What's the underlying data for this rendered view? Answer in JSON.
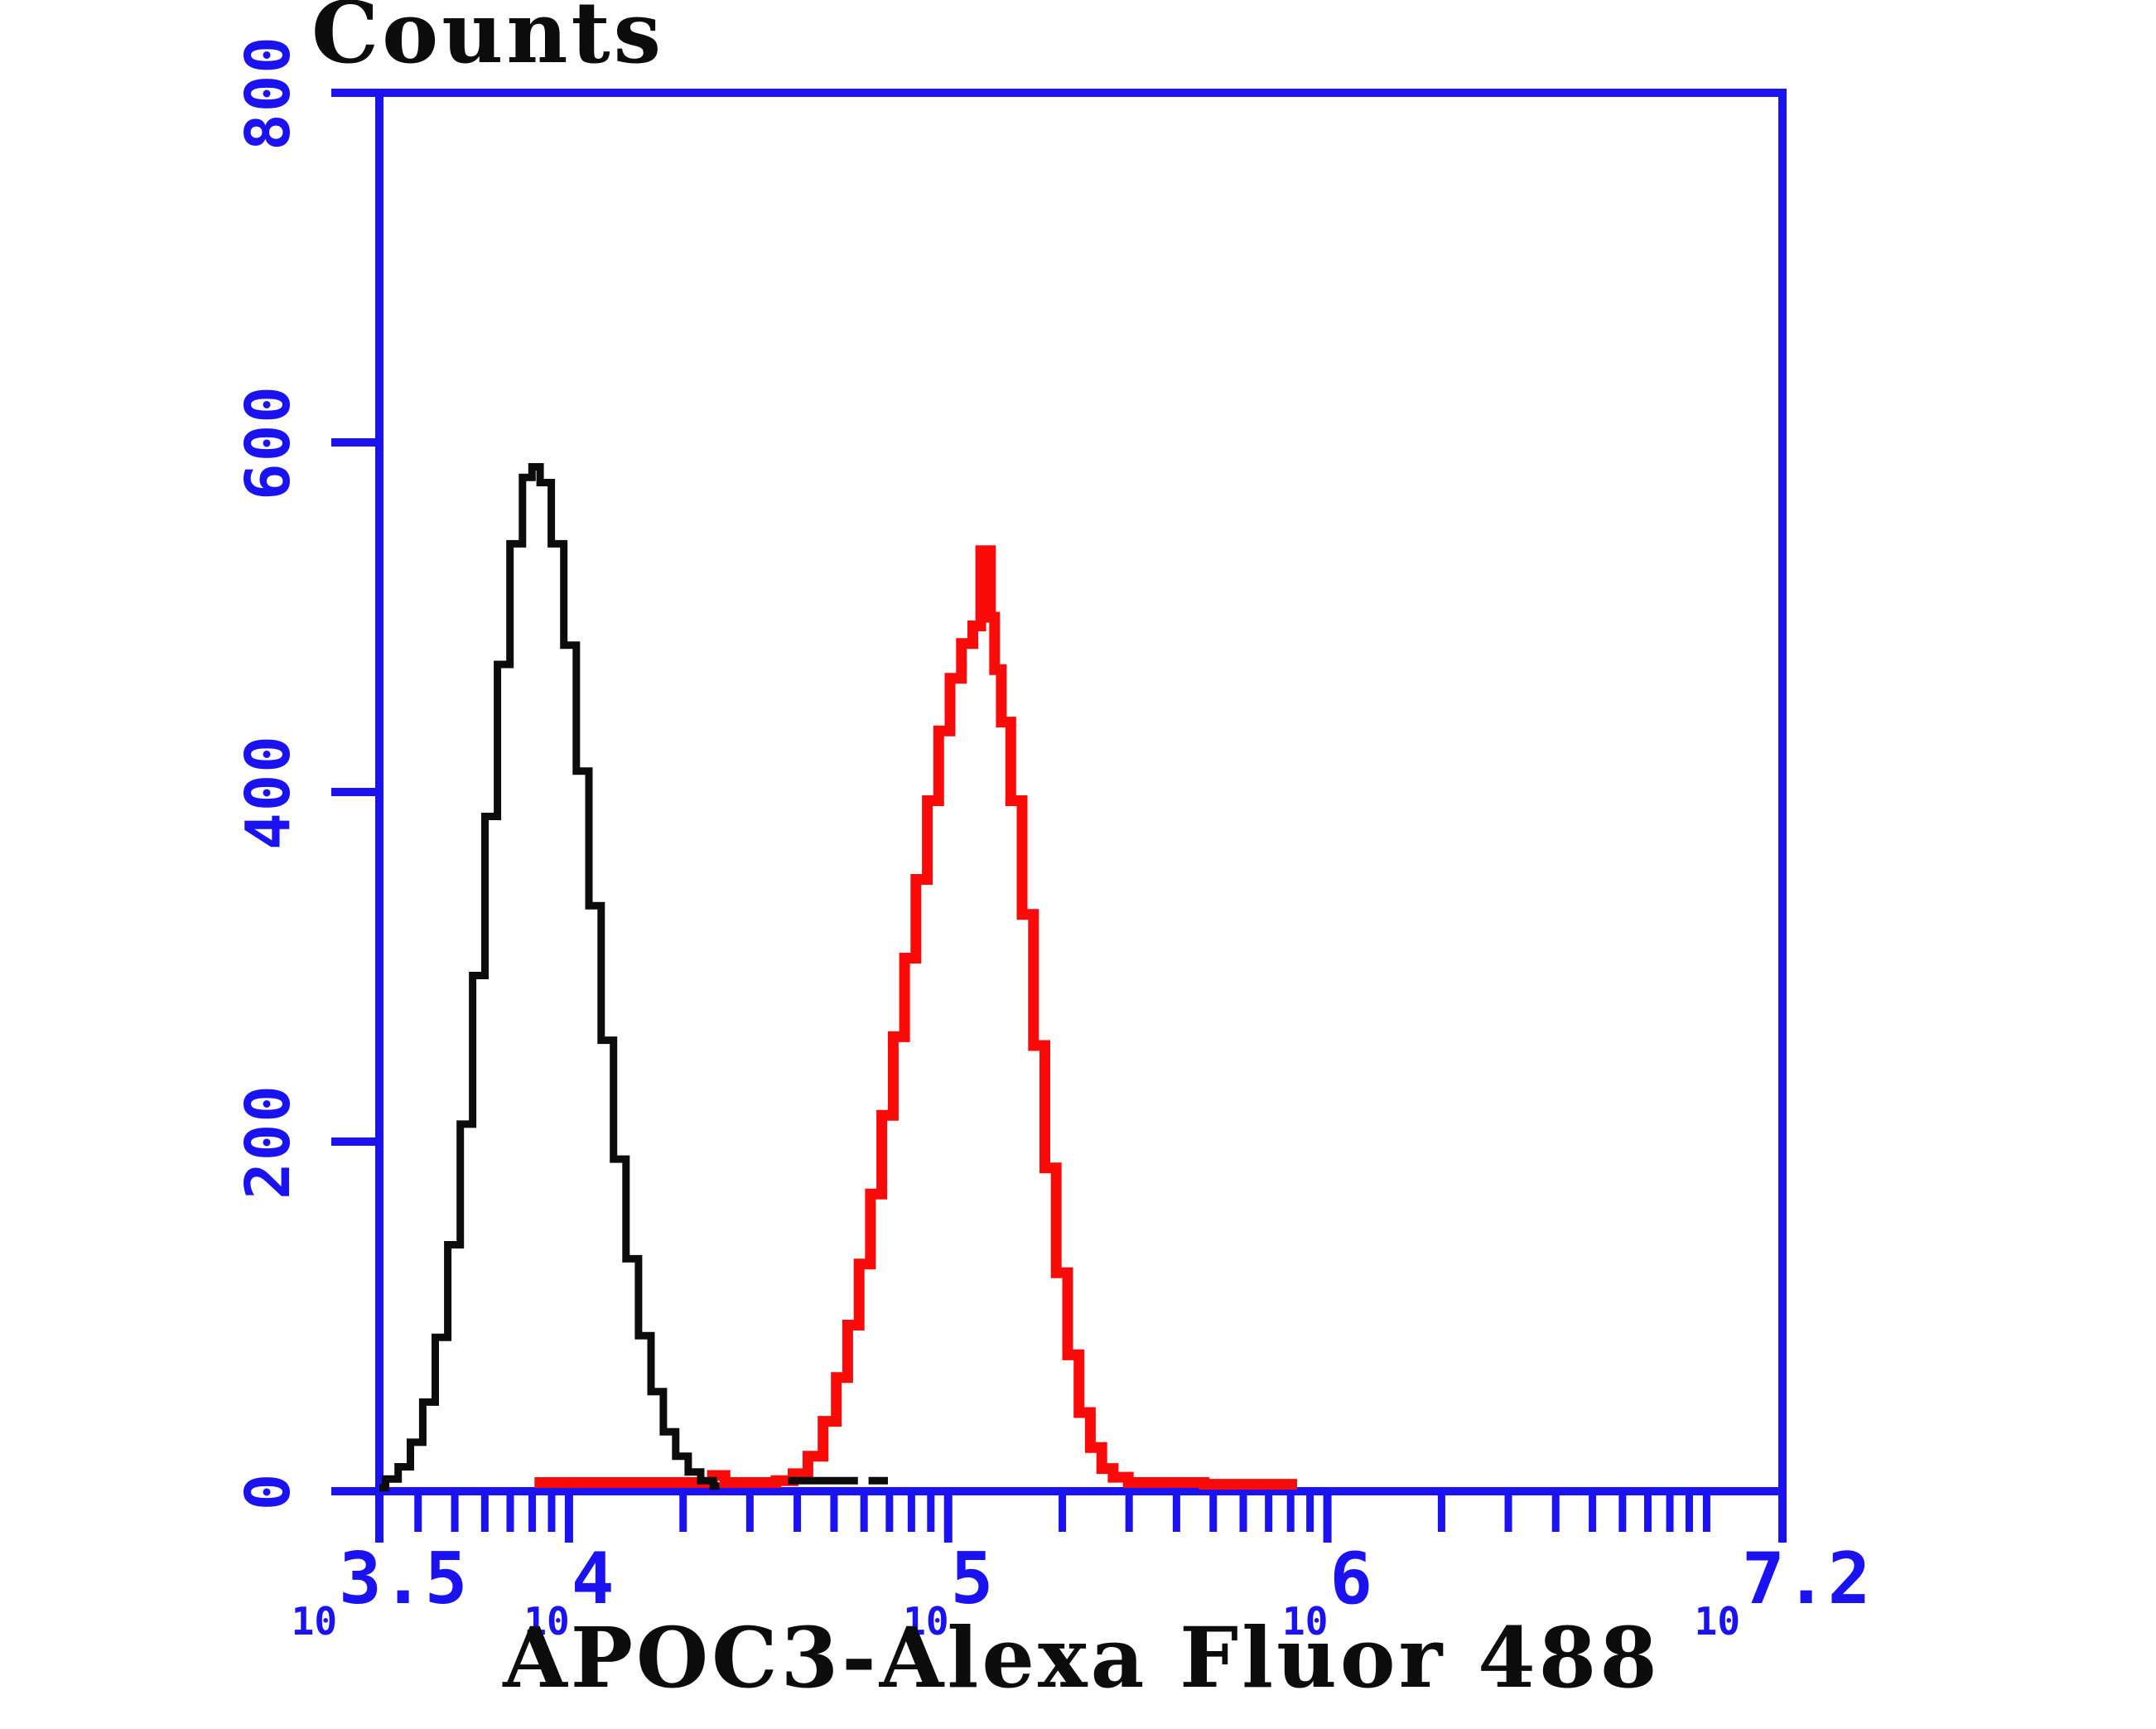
{
  "figure": {
    "title": "Counts",
    "x_axis_title": "APOC3-Alexa Fluor 488",
    "colors": {
      "axis": "#1b12f2",
      "black_series": "#0c0c0c",
      "red_series": "#fb0a0a",
      "background": "#ffffff"
    },
    "y_axis": {
      "min": 0,
      "max": 800,
      "major_ticks": [
        0,
        200,
        400,
        600,
        800
      ],
      "labels": [
        "0",
        "200",
        "400",
        "600",
        "800"
      ]
    },
    "x_axis": {
      "scale": "log10",
      "log_min": 3.5,
      "log_max": 7.2,
      "major_ticks": [
        {
          "base": "10",
          "exp": "3.5",
          "log": 3.5
        },
        {
          "base": "10",
          "exp": "4",
          "log": 4.0
        },
        {
          "base": "10",
          "exp": "5",
          "log": 5.0
        },
        {
          "base": "10",
          "exp": "6",
          "log": 6.0
        },
        {
          "base": "10",
          "exp": "7.2",
          "log": 7.2
        }
      ]
    }
  },
  "chart_data": {
    "type": "line",
    "subtype": "flow-cytometry-histogram",
    "title": "Counts",
    "xlabel": "APOC3-Alexa Fluor 488",
    "ylabel": "Counts",
    "x_scale": "log10",
    "x_range_log": [
      3.5,
      7.2
    ],
    "ylim": [
      0,
      800
    ],
    "grid": false,
    "legend": "none",
    "series": [
      {
        "name": "red-curve",
        "color": "#fb0a0a",
        "peak": {
          "log_x": 5.1,
          "counts": 538
        },
        "segments": [
          [
            [
              3.909,
              5
            ],
            [
              4.1,
              5
            ],
            [
              4.3,
              5
            ],
            [
              4.375,
              5
            ],
            [
              4.382,
              9
            ],
            [
              4.408,
              9
            ],
            [
              4.415,
              5
            ],
            [
              4.52,
              5
            ],
            [
              4.572,
              6
            ],
            [
              4.61,
              10
            ],
            [
              4.65,
              20
            ],
            [
              4.69,
              40
            ],
            [
              4.72,
              65
            ],
            [
              4.75,
              95
            ],
            [
              4.78,
              130
            ],
            [
              4.81,
              170
            ],
            [
              4.84,
              215
            ],
            [
              4.87,
              260
            ],
            [
              4.9,
              305
            ],
            [
              4.93,
              350
            ],
            [
              4.96,
              395
            ],
            [
              4.99,
              435
            ],
            [
              5.02,
              465
            ],
            [
              5.05,
              485
            ],
            [
              5.08,
              495
            ],
            [
              5.092,
              538
            ],
            [
              5.108,
              538
            ],
            [
              5.115,
              500
            ],
            [
              5.13,
              470
            ],
            [
              5.15,
              440
            ],
            [
              5.18,
              395
            ],
            [
              5.21,
              330
            ],
            [
              5.24,
              255
            ],
            [
              5.27,
              185
            ],
            [
              5.3,
              125
            ],
            [
              5.33,
              78
            ],
            [
              5.36,
              45
            ],
            [
              5.39,
              25
            ],
            [
              5.42,
              13
            ],
            [
              5.45,
              8
            ],
            [
              5.5,
              5
            ],
            [
              5.6,
              5
            ],
            [
              5.75,
              4
            ],
            [
              5.92,
              4
            ]
          ]
        ]
      },
      {
        "name": "black-curve",
        "color": "#0c0c0c",
        "peak": {
          "log_x": 3.91,
          "counts": 586
        },
        "segments": [
          [
            [
              3.5,
              2
            ],
            [
              3.533,
              7
            ],
            [
              3.566,
              14
            ],
            [
              3.598,
              28
            ],
            [
              3.631,
              51
            ],
            [
              3.664,
              88
            ],
            [
              3.697,
              141
            ],
            [
              3.73,
              210
            ],
            [
              3.762,
              295
            ],
            [
              3.795,
              386
            ],
            [
              3.828,
              473
            ],
            [
              3.861,
              542
            ],
            [
              3.894,
              580
            ],
            [
              3.911,
              586
            ],
            [
              3.937,
              577
            ],
            [
              3.97,
              542
            ],
            [
              4.003,
              484
            ],
            [
              4.036,
              412
            ],
            [
              4.069,
              335
            ],
            [
              4.101,
              258
            ],
            [
              4.134,
              190
            ],
            [
              4.167,
              133
            ],
            [
              4.2,
              89
            ],
            [
              4.233,
              57
            ],
            [
              4.265,
              34
            ],
            [
              4.298,
              20
            ],
            [
              4.331,
              11
            ],
            [
              4.364,
              6
            ],
            [
              4.397,
              3
            ]
          ],
          [
            [
              4.578,
              6
            ],
            [
              4.762,
              6
            ]
          ],
          [
            [
              4.79,
              6
            ],
            [
              4.841,
              6
            ]
          ]
        ]
      }
    ]
  }
}
